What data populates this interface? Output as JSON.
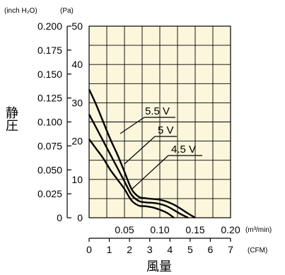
{
  "chart_data": {
    "type": "line",
    "xlabel": "風量",
    "ylabel": "静圧",
    "y_unit_left": "(inch H₂O)",
    "y_unit_right": "(Pa)",
    "x_unit_top": "(m³/min)",
    "x_unit_bottom": "(CFM)",
    "x_range_m3min": [
      0,
      0.2
    ],
    "y_range_pa": [
      0,
      50
    ],
    "y_ticks_pa": [
      "0",
      "10",
      "20",
      "30",
      "40",
      "50"
    ],
    "y_ticks_inch": [
      "0",
      "0.025",
      "0.050",
      "0.075",
      "0.100",
      "0.125",
      "0.150",
      "0.175",
      "0.200"
    ],
    "x_ticks_m3min": [
      "0.05",
      "0.10",
      "0.15",
      "0.20"
    ],
    "x_ticks_cfm": [
      "0",
      "1",
      "2",
      "3",
      "4",
      "5",
      "6",
      "7"
    ],
    "grid": true,
    "colors": {
      "plot_bg": "#fcf6dc",
      "grid": "#000000",
      "curve": "#000000"
    },
    "series": [
      {
        "name": "5.5 V",
        "x": [
          0,
          0.01,
          0.02,
          0.03,
          0.04,
          0.05,
          0.06,
          0.07,
          0.08,
          0.09,
          0.1,
          0.11,
          0.12,
          0.13,
          0.14,
          0.15
        ],
        "y": [
          33.5,
          29.5,
          25,
          20.5,
          16.5,
          12,
          7.5,
          5.5,
          5.1,
          4.9,
          4.7,
          4.2,
          3.4,
          2.3,
          1.1,
          0
        ]
      },
      {
        "name": "5 V",
        "x": [
          0,
          0.01,
          0.02,
          0.03,
          0.04,
          0.05,
          0.06,
          0.07,
          0.08,
          0.09,
          0.1,
          0.11,
          0.12,
          0.13,
          0.14
        ],
        "y": [
          27,
          23.5,
          20,
          16.5,
          13,
          9.5,
          6,
          4.4,
          4.0,
          3.9,
          3.6,
          3.0,
          2.0,
          0.9,
          0
        ]
      },
      {
        "name": "4.5 V",
        "x": [
          0,
          0.01,
          0.02,
          0.03,
          0.04,
          0.05,
          0.06,
          0.07,
          0.08,
          0.09,
          0.1,
          0.11,
          0.12
        ],
        "y": [
          20.5,
          18,
          15.5,
          12.5,
          10,
          7.5,
          4.5,
          3.2,
          3.0,
          2.7,
          2.1,
          1.3,
          0
        ]
      }
    ],
    "curve_labels": [
      "5.5 V",
      "5 V",
      "4.5 V"
    ]
  }
}
